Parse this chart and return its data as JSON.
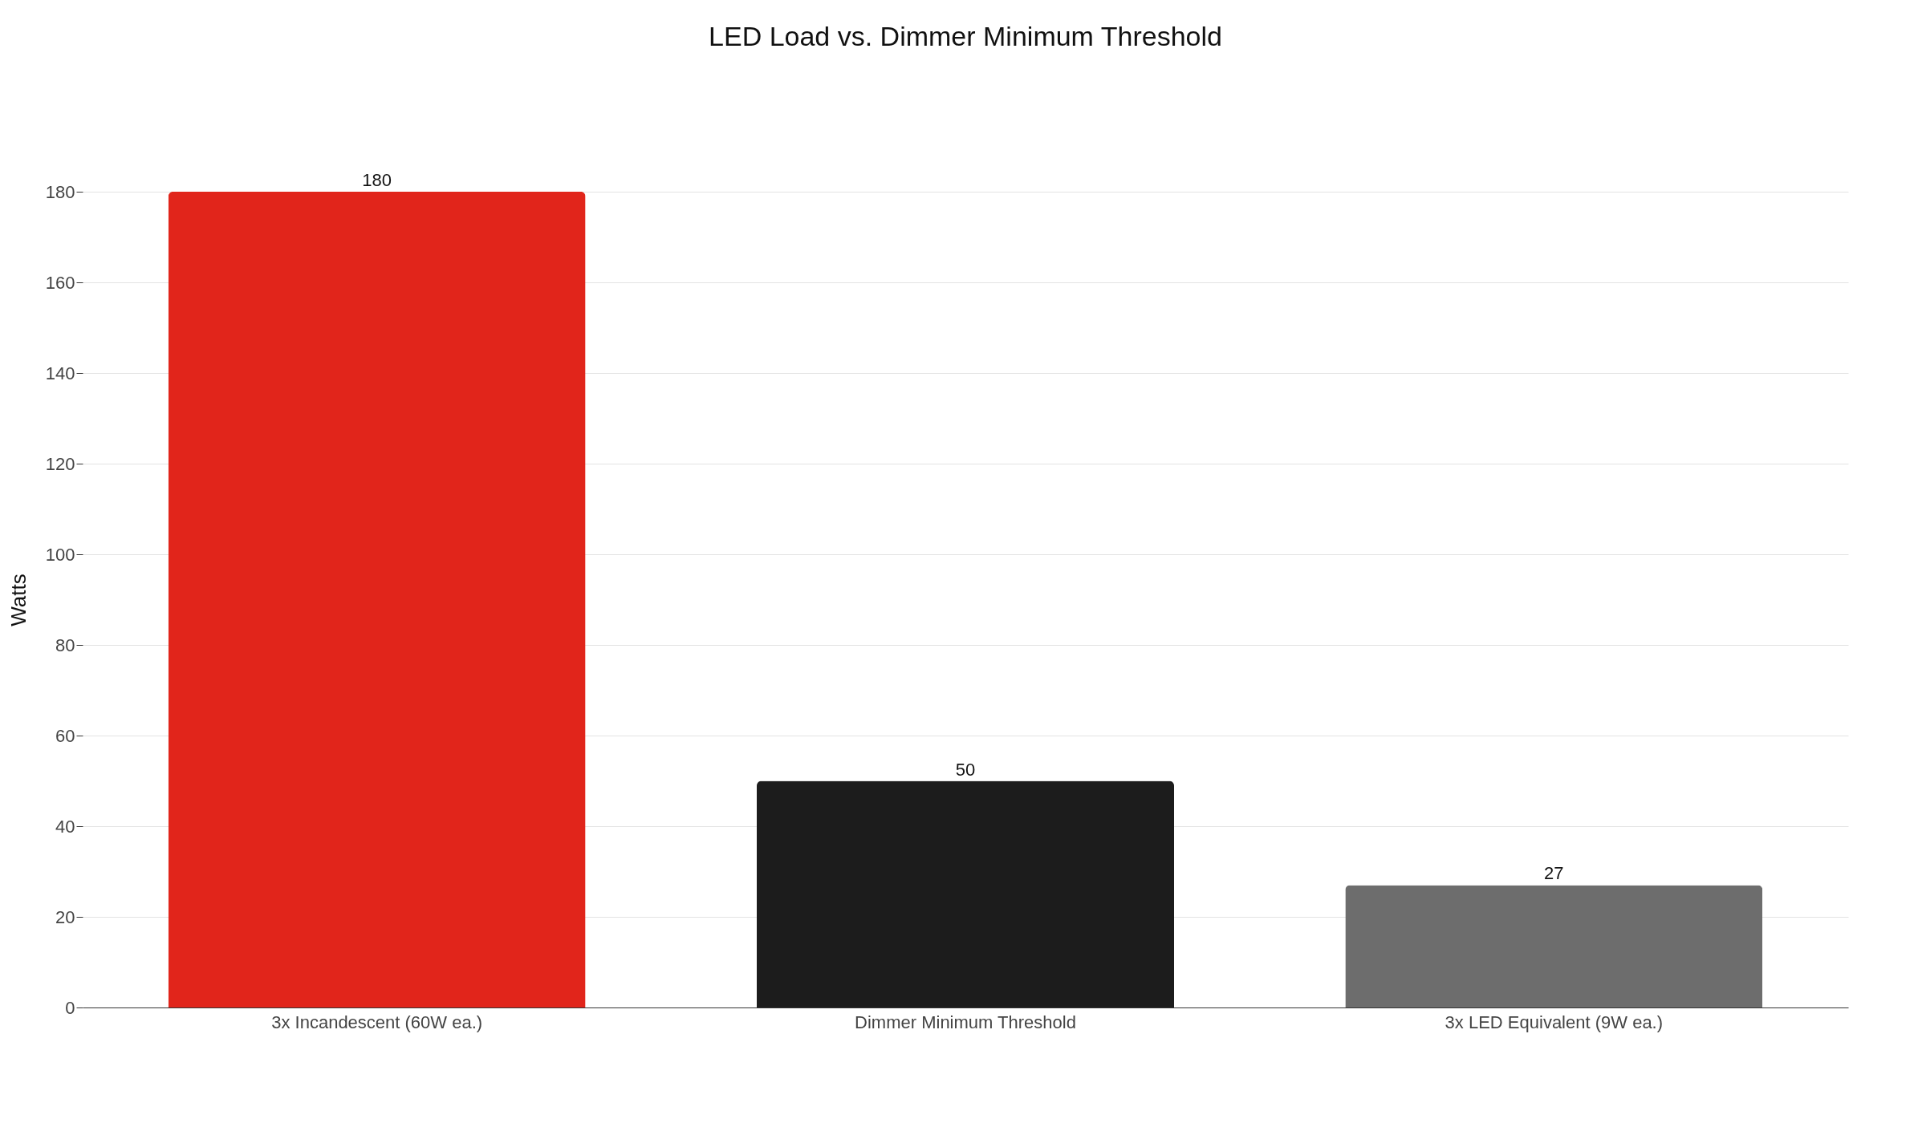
{
  "chart_data": {
    "type": "bar",
    "title": "LED Load vs. Dimmer Minimum Threshold",
    "ylabel": "Watts",
    "categories": [
      "3x Incandescent (60W ea.)",
      "Dimmer Minimum Threshold",
      "3x LED Equivalent (9W ea.)"
    ],
    "values": [
      180,
      50,
      27
    ],
    "colors": [
      "#e1251b",
      "#1c1c1c",
      "#6d6d6d"
    ],
    "ylim": [
      0,
      180
    ],
    "yticks": [
      0,
      20,
      40,
      60,
      80,
      100,
      120,
      140,
      160,
      180
    ],
    "grid": "y",
    "data_labels": true
  }
}
